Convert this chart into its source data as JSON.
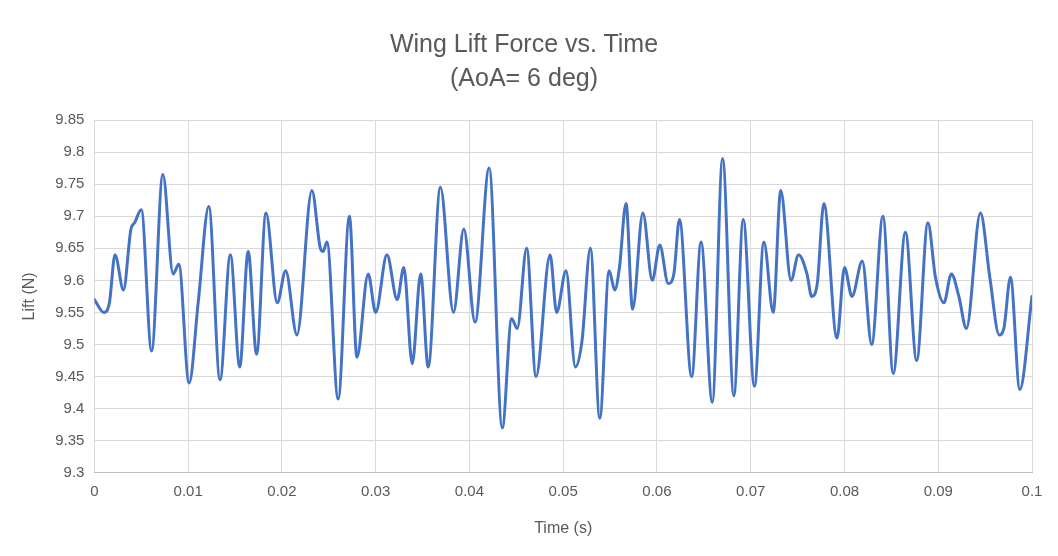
{
  "chart_data": {
    "type": "line",
    "title": "Wing Lift Force vs. Time",
    "subtitle": "(AoA= 6 deg)",
    "xlabel": "Time (s)",
    "ylabel": "Lift (N)",
    "xlim": [
      0,
      0.1
    ],
    "xticks": [
      0,
      0.01,
      0.02,
      0.03,
      0.04,
      0.05,
      0.06,
      0.07,
      0.08,
      0.09,
      0.1
    ],
    "ylim": [
      9.3,
      9.85
    ],
    "yticks": [
      9.3,
      9.35,
      9.4,
      9.45,
      9.5,
      9.55,
      9.6,
      9.65,
      9.7,
      9.75,
      9.8,
      9.85
    ],
    "grid": true,
    "legend": false,
    "marker": "none",
    "line_style": "solid",
    "series": [
      {
        "color": "#4472c4",
        "x": [
          0,
          0.001,
          0.0016,
          0.0022,
          0.0031,
          0.0039,
          0.0043,
          0.005,
          0.0061,
          0.0073,
          0.0084,
          0.009,
          0.0101,
          0.0111,
          0.0122,
          0.0134,
          0.0145,
          0.0155,
          0.0164,
          0.0173,
          0.0183,
          0.0195,
          0.0204,
          0.0216,
          0.0232,
          0.0241,
          0.0244,
          0.0248,
          0.026,
          0.0272,
          0.028,
          0.0292,
          0.03,
          0.0312,
          0.0323,
          0.033,
          0.0339,
          0.0348,
          0.0356,
          0.0369,
          0.0383,
          0.0394,
          0.0406,
          0.0421,
          0.0435,
          0.0445,
          0.0451,
          0.0461,
          0.0471,
          0.0486,
          0.0493,
          0.0503,
          0.0513,
          0.052,
          0.0529,
          0.0539,
          0.0549,
          0.0555,
          0.056,
          0.0567,
          0.0574,
          0.0585,
          0.0595,
          0.0603,
          0.0612,
          0.0618,
          0.0624,
          0.0637,
          0.0647,
          0.0659,
          0.067,
          0.0682,
          0.0692,
          0.0704,
          0.0714,
          0.0724,
          0.0732,
          0.0743,
          0.0751,
          0.076,
          0.0765,
          0.0771,
          0.0778,
          0.0792,
          0.08,
          0.0808,
          0.0819,
          0.0829,
          0.0841,
          0.0852,
          0.0865,
          0.0877,
          0.0889,
          0.0897,
          0.0906,
          0.0914,
          0.0922,
          0.093,
          0.0945,
          0.0955,
          0.0965,
          0.097,
          0.0977,
          0.0987,
          0.1
        ],
        "values": [
          9.57,
          9.55,
          9.565,
          9.64,
          9.585,
          9.68,
          9.69,
          9.71,
          9.49,
          9.765,
          9.61,
          9.625,
          9.44,
          9.57,
          9.715,
          9.445,
          9.64,
          9.465,
          9.645,
          9.485,
          9.705,
          9.565,
          9.615,
          9.515,
          9.74,
          9.65,
          9.645,
          9.66,
          9.415,
          9.7,
          9.48,
          9.61,
          9.55,
          9.64,
          9.57,
          9.62,
          9.47,
          9.61,
          9.465,
          9.745,
          9.55,
          9.68,
          9.535,
          9.775,
          9.37,
          9.54,
          9.525,
          9.65,
          9.45,
          9.64,
          9.55,
          9.615,
          9.465,
          9.505,
          9.65,
          9.385,
          9.615,
          9.585,
          9.62,
          9.72,
          9.555,
          9.705,
          9.6,
          9.655,
          9.595,
          9.61,
          9.695,
          9.45,
          9.66,
          9.41,
          9.79,
          9.42,
          9.695,
          9.435,
          9.66,
          9.55,
          9.74,
          9.6,
          9.64,
          9.61,
          9.575,
          9.595,
          9.72,
          9.51,
          9.62,
          9.575,
          9.63,
          9.5,
          9.7,
          9.455,
          9.675,
          9.475,
          9.69,
          9.605,
          9.565,
          9.61,
          9.575,
          9.525,
          9.705,
          9.605,
          9.515,
          9.525,
          9.605,
          9.43,
          9.575
        ]
      }
    ]
  }
}
